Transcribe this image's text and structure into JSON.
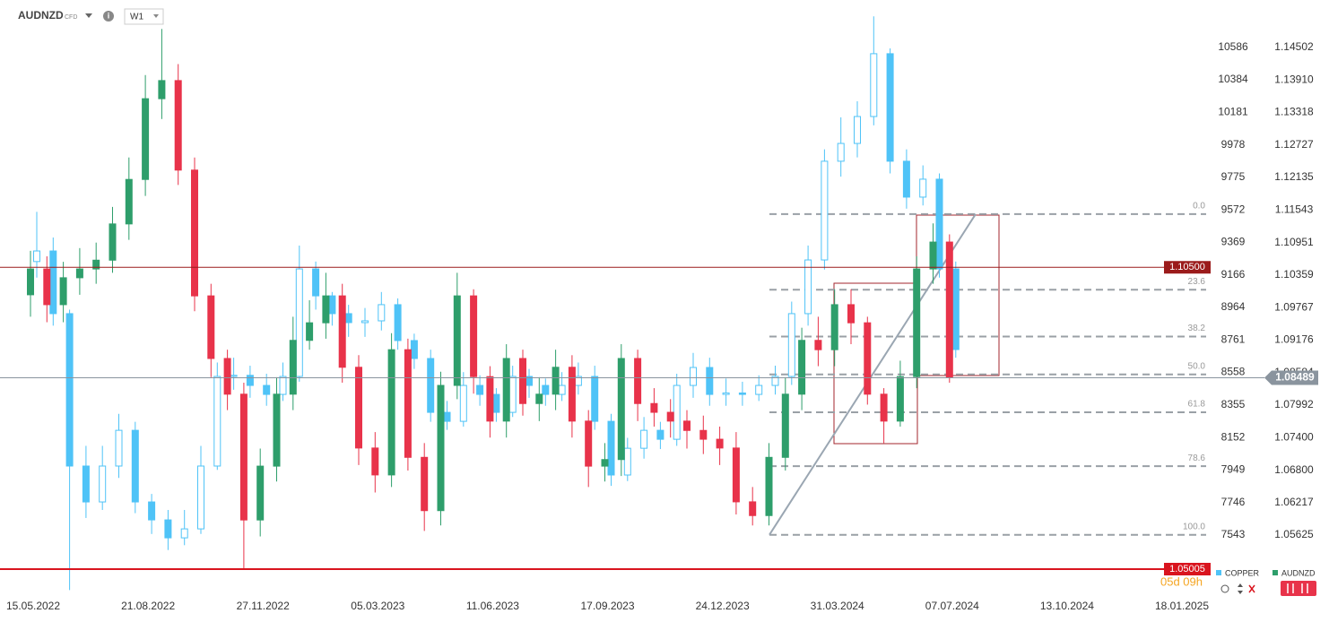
{
  "header": {
    "symbol": "AUDNZD",
    "badge": "CFD",
    "timeframe": "W1"
  },
  "chart_data": {
    "type": "candlestick",
    "categories": [
      "15.05.2022",
      null,
      null,
      null,
      null,
      null,
      null,
      "21.08.2022",
      null,
      null,
      null,
      null,
      null,
      null,
      "27.11.2022",
      null,
      null,
      null,
      null,
      null,
      null,
      "05.03.2023",
      null,
      null,
      null,
      null,
      null,
      null,
      "11.06.2023",
      null,
      null,
      null,
      null,
      null,
      null,
      "17.09.2023",
      null,
      null,
      null,
      null,
      null,
      null,
      "24.12.2023",
      null,
      null,
      null,
      null,
      null,
      null,
      "31.03.2024",
      null,
      null,
      null,
      null,
      null,
      null,
      "07.07.2024",
      null,
      null,
      null,
      null,
      null,
      null,
      "13.10.2024",
      null,
      null,
      null,
      null,
      null,
      null,
      "18.01.2025"
    ],
    "series": [
      {
        "name": "COPPER",
        "color": "#4fc3f7",
        "axis": "y",
        "open": [
          9250,
          9316,
          8925,
          7974,
          7750,
          7974,
          8197,
          7750,
          7638,
          7526,
          7582,
          7974,
          8533,
          8540,
          8477,
          8421,
          8533,
          9204,
          9036,
          8925,
          8869,
          8880,
          8981,
          8757,
          8645,
          8309,
          8253,
          8477,
          8421,
          8309,
          8533,
          8477,
          8421,
          8477,
          8533,
          8253,
          7918,
          8085,
          8197,
          8141,
          8477,
          8589,
          8421,
          8430,
          8421,
          8477,
          8533,
          8925,
          9260,
          9876,
          9987,
          10155,
          10547,
          9876,
          9652,
          9764,
          9204,
          null,
          null,
          null,
          null,
          null,
          null,
          null,
          null,
          null,
          null,
          null,
          null,
          null,
          null
        ],
        "high": [
          9560,
          9400,
          8950,
          8100,
          8100,
          8300,
          8250,
          7800,
          7700,
          7700,
          8100,
          8620,
          8650,
          8600,
          8550,
          8620,
          9350,
          9250,
          9060,
          8980,
          8960,
          9060,
          9020,
          8800,
          8700,
          8380,
          8560,
          8540,
          8460,
          8600,
          8580,
          8520,
          8560,
          8620,
          8600,
          8300,
          8150,
          8280,
          8250,
          8550,
          8680,
          8650,
          8520,
          8500,
          8540,
          8600,
          9000,
          9350,
          9950,
          10150,
          10250,
          10780,
          10580,
          9950,
          9850,
          9800,
          9250,
          null,
          null,
          null,
          null,
          null,
          null,
          null,
          null,
          null,
          null,
          null,
          null,
          null,
          null
        ],
        "low": [
          9150,
          8850,
          7200,
          7650,
          7700,
          7900,
          7680,
          7550,
          7450,
          7480,
          7550,
          7950,
          8450,
          8400,
          8350,
          8380,
          8500,
          8950,
          8850,
          8780,
          8780,
          8820,
          8700,
          8580,
          8250,
          8200,
          8220,
          8350,
          8250,
          8280,
          8400,
          8350,
          8380,
          8420,
          8200,
          7850,
          7880,
          8020,
          8080,
          8100,
          8400,
          8350,
          8350,
          8350,
          8380,
          8420,
          8480,
          8850,
          9200,
          9780,
          9900,
          10100,
          9800,
          9580,
          9600,
          9150,
          8650,
          null,
          null,
          null,
          null,
          null,
          null,
          null,
          null,
          null,
          null,
          null,
          null,
          null,
          null
        ],
        "close": [
          9316,
          8925,
          7974,
          7750,
          7974,
          8197,
          7750,
          7638,
          7526,
          7582,
          7974,
          8533,
          8540,
          8477,
          8421,
          8533,
          9204,
          9036,
          8925,
          8869,
          8880,
          8981,
          8757,
          8645,
          8309,
          8253,
          8477,
          8421,
          8309,
          8533,
          8477,
          8421,
          8477,
          8533,
          8253,
          7918,
          8085,
          8197,
          8141,
          8477,
          8589,
          8421,
          8430,
          8421,
          8477,
          8533,
          8925,
          9260,
          9876,
          9987,
          10155,
          10547,
          9876,
          9652,
          9764,
          9204,
          8701,
          null,
          null,
          null,
          null,
          null,
          null,
          null,
          null,
          null,
          null,
          null,
          null,
          null,
          null
        ]
      },
      {
        "name": "AUDNZD",
        "color": "#2e9e6b",
        "down_color": "#e8334a",
        "axis": "y2",
        "open": [
          1.1,
          1.1047,
          1.0982,
          1.1031,
          1.1047,
          1.1063,
          1.1129,
          1.121,
          1.1357,
          1.139,
          1.1227,
          1.0998,
          1.0884,
          1.0819,
          1.059,
          1.0688,
          1.0819,
          1.0917,
          1.0949,
          1.0998,
          1.0868,
          1.0721,
          1.0672,
          1.09,
          1.0704,
          1.0607,
          1.0835,
          1.0998,
          1.0851,
          1.077,
          1.0884,
          1.0802,
          1.0819,
          1.0868,
          1.077,
          1.0688,
          1.07,
          1.0884,
          1.0802,
          1.0786,
          1.077,
          1.0753,
          1.0737,
          1.0721,
          1.0623,
          1.0598,
          1.0704,
          1.0819,
          1.0917,
          1.09,
          1.0982,
          1.0949,
          1.0819,
          1.077,
          1.0851,
          1.1047,
          1.1096,
          null,
          null,
          null,
          null,
          null,
          null,
          null,
          null,
          null,
          null,
          null,
          null,
          null,
          null
        ],
        "high": [
          1.108,
          1.107,
          1.106,
          1.1085,
          1.1095,
          1.116,
          1.125,
          1.14,
          1.1484,
          1.142,
          1.125,
          1.102,
          1.09,
          1.084,
          1.072,
          1.085,
          1.096,
          1.099,
          1.104,
          1.102,
          1.089,
          1.075,
          1.093,
          1.092,
          1.073,
          1.086,
          1.104,
          1.101,
          1.087,
          1.091,
          1.09,
          1.085,
          1.09,
          1.089,
          1.079,
          1.073,
          1.091,
          1.09,
          1.083,
          1.081,
          1.079,
          1.078,
          1.076,
          1.075,
          1.065,
          1.073,
          1.085,
          1.094,
          1.096,
          1.101,
          1.101,
          1.096,
          1.083,
          1.088,
          1.107,
          1.113,
          1.111,
          null,
          null,
          null,
          null,
          null,
          null,
          null,
          null,
          null,
          null,
          null,
          null,
          null,
          null
        ],
        "low": [
          1.096,
          1.095,
          1.095,
          1.1,
          1.102,
          1.104,
          1.11,
          1.118,
          1.132,
          1.12,
          1.097,
          1.085,
          1.079,
          1.05,
          1.056,
          1.066,
          1.079,
          1.09,
          1.092,
          1.084,
          1.069,
          1.064,
          1.065,
          1.068,
          1.057,
          1.058,
          1.081,
          1.082,
          1.074,
          1.074,
          1.078,
          1.077,
          1.079,
          1.074,
          1.065,
          1.066,
          1.067,
          1.077,
          1.076,
          1.074,
          1.072,
          1.071,
          1.069,
          1.06,
          1.058,
          1.058,
          1.068,
          1.079,
          1.087,
          1.087,
          1.091,
          1.08,
          1.073,
          1.076,
          1.083,
          1.102,
          1.084,
          null,
          null,
          null,
          null,
          null,
          null,
          null,
          null,
          null,
          null,
          null,
          null,
          null,
          null
        ],
        "close": [
          1.1047,
          1.0982,
          1.1031,
          1.1047,
          1.1063,
          1.1129,
          1.121,
          1.1357,
          1.139,
          1.1227,
          1.0998,
          1.0884,
          1.0819,
          1.059,
          1.0688,
          1.0819,
          1.0917,
          1.0949,
          1.0998,
          1.0868,
          1.0721,
          1.0672,
          1.09,
          1.0704,
          1.0607,
          1.0835,
          1.0998,
          1.0851,
          1.077,
          1.0884,
          1.0802,
          1.0819,
          1.0868,
          1.077,
          1.0688,
          1.07,
          1.0884,
          1.0802,
          1.0786,
          1.077,
          1.0753,
          1.0737,
          1.0721,
          1.0623,
          1.0598,
          1.0704,
          1.0819,
          1.0917,
          1.09,
          1.0982,
          1.0949,
          1.0819,
          1.077,
          1.0851,
          1.1047,
          1.1096,
          1.08489,
          null,
          null,
          null,
          null,
          null,
          null,
          null,
          null,
          null,
          null,
          null,
          null,
          null,
          null
        ]
      }
    ],
    "ylim": [
      7191,
      10882
    ],
    "yticks": [
      10586,
      10384,
      10181,
      9978,
      9775,
      9572,
      9369,
      9166,
      8964,
      8761,
      8558,
      8355,
      8152,
      7949,
      7746,
      7543
    ],
    "y2lim": [
      1.04597,
      1.15367
    ],
    "y2ticks": [
      1.14502,
      {
        "value": 1.1391,
        "label": "1.13910"
      },
      1.13318,
      1.12727,
      1.12135,
      1.11543,
      1.10951,
      1.10359,
      1.09767,
      1.09176,
      1.08584,
      1.07992,
      {
        "value": 1.074,
        "label": "1.07400"
      },
      {
        "value": 1.068,
        "label": "1.06800"
      },
      1.06217,
      1.05625
    ],
    "lines": [
      {
        "value": 1.105,
        "label": "1.10500",
        "color": "#9b1b1b"
      },
      {
        "value": 1.05005,
        "label": "1.05005",
        "color": "#d9141e"
      },
      {
        "value": 1.08489,
        "label": "1.08489",
        "color": "#8a949e"
      }
    ],
    "fibonacci": {
      "high": 1.1147,
      "low": 1.0563,
      "levels": [
        {
          "value": 0,
          "label": "0.0"
        },
        23.6,
        38.2,
        {
          "value": 50,
          "label": "50.0"
        },
        61.8,
        78.6,
        {
          "value": 100,
          "label": "100.0"
        }
      ]
    }
  },
  "footer": {
    "countdown": "05d 09h"
  }
}
